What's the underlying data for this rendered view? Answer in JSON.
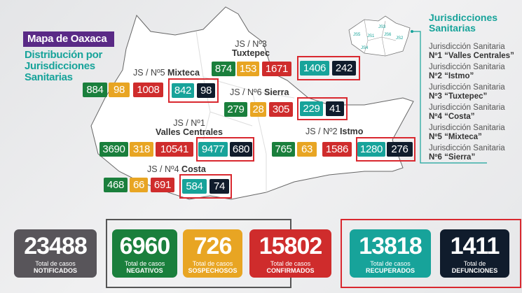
{
  "header": {
    "title": "Mapa de Oaxaca",
    "subtitle": "Distribución por Jurisdicciones Sanitarias"
  },
  "colors": {
    "negativos": "#1a7f3c",
    "sospechosos": "#e8a523",
    "confirmados": "#cf2c2c",
    "recuperados": "#17a39a",
    "defunciones": "#101c2c",
    "notificados": "#58555a",
    "accent": "#5a2a86"
  },
  "regions": {
    "tuxtepec": {
      "label1": "JS / Nº3",
      "label2": "Tuxtepec",
      "negativos": "874",
      "sospechosos": "153",
      "confirmados": "1671",
      "recuperados": "1406",
      "defunciones": "242"
    },
    "mixteca": {
      "label1": "JS / Nº5",
      "label2": "Mixteca",
      "negativos": "884",
      "sospechosos": "98",
      "confirmados": "1008",
      "recuperados": "842",
      "defunciones": "98"
    },
    "sierra": {
      "label1": "JS / Nº6",
      "label2": "Sierra",
      "negativos": "279",
      "sospechosos": "28",
      "confirmados": "305",
      "recuperados": "229",
      "defunciones": "41"
    },
    "valles": {
      "label1": "JS / Nº1",
      "label2": "Valles Centrales",
      "negativos": "3690",
      "sospechosos": "318",
      "confirmados": "10541",
      "recuperados": "9477",
      "defunciones": "680"
    },
    "istmo": {
      "label1": "JS / Nº2",
      "label2": "Istmo",
      "negativos": "765",
      "sospechosos": "63",
      "confirmados": "1586",
      "recuperados": "1280",
      "defunciones": "276"
    },
    "costa": {
      "label1": "JS / Nº4",
      "label2": "Costa",
      "negativos": "468",
      "sospechosos": "66",
      "confirmados": "691",
      "recuperados": "584",
      "defunciones": "74"
    }
  },
  "inset_labels": [
    "JS1",
    "JS2",
    "JS3",
    "JS4",
    "JS5",
    "JS6"
  ],
  "legend": {
    "title": "Jurisdicciones Sanitarias",
    "items": [
      {
        "prefix": "Jurisdicción Sanitaria",
        "name": "Nº1 “Valles Centrales”"
      },
      {
        "prefix": "Jurisdicción Sanitaria",
        "name": "Nº2 “Istmo”"
      },
      {
        "prefix": "Jurisdicción Sanitaria",
        "name": "Nº3 “Tuxtepec”"
      },
      {
        "prefix": "Jurisdicción Sanitaria",
        "name": "Nº4 “Costa”"
      },
      {
        "prefix": "Jurisdicción Sanitaria",
        "name": "Nº5 “Mixteca”"
      },
      {
        "prefix": "Jurisdicción Sanitaria",
        "name": "Nº6 “Sierra”"
      }
    ]
  },
  "totals": [
    {
      "value": "23488",
      "line1": "Total de casos",
      "line2": "NOTIFICADOS"
    },
    {
      "value": "6960",
      "line1": "Total de casos",
      "line2": "NEGATIVOS"
    },
    {
      "value": "726",
      "line1": "Total de casos",
      "line2": "SOSPECHOSOS"
    },
    {
      "value": "15802",
      "line1": "Total de casos",
      "line2": "CONFIRMADOS"
    },
    {
      "value": "13818",
      "line1": "Total de casos",
      "line2": "RECUPERADOS"
    },
    {
      "value": "1411",
      "line1": "Total de",
      "line2": "DEFUNCIONES"
    }
  ]
}
